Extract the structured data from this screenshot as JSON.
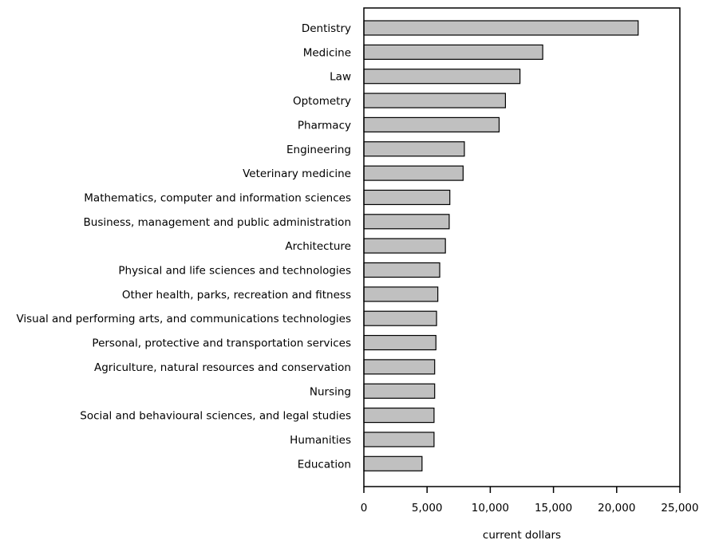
{
  "chart_data": {
    "type": "bar",
    "orientation": "horizontal",
    "categories": [
      "Dentistry",
      "Medicine",
      "Law",
      "Optometry",
      "Pharmacy",
      "Engineering",
      "Veterinary medicine",
      "Mathematics, computer and information sciences",
      "Business, management and public administration",
      "Architecture",
      "Physical and life sciences and technologies",
      "Other health, parks, recreation and fitness",
      "Visual and performing arts, and communications technologies",
      "Personal, protective and transportation services",
      "Agriculture, natural resources and conservation",
      "Nursing",
      "Social and behavioural sciences, and legal studies",
      "Humanities",
      "Education"
    ],
    "values": [
      21700,
      14150,
      12350,
      11200,
      10700,
      7950,
      7850,
      6800,
      6750,
      6450,
      6000,
      5850,
      5750,
      5700,
      5600,
      5600,
      5550,
      5550,
      4600
    ],
    "xlabel": "current dollars",
    "ylabel": "",
    "xlim": [
      0,
      25000
    ],
    "xticks": [
      0,
      5000,
      10000,
      15000,
      20000,
      25000
    ],
    "xtick_labels": [
      "0",
      "5,000",
      "10,000",
      "15,000",
      "20,000",
      "25,000"
    ],
    "grid": false,
    "legend": "none",
    "colors": {
      "bar_fill": "#c0c0c0",
      "bar_stroke": "#000000",
      "axis": "#000000"
    }
  }
}
